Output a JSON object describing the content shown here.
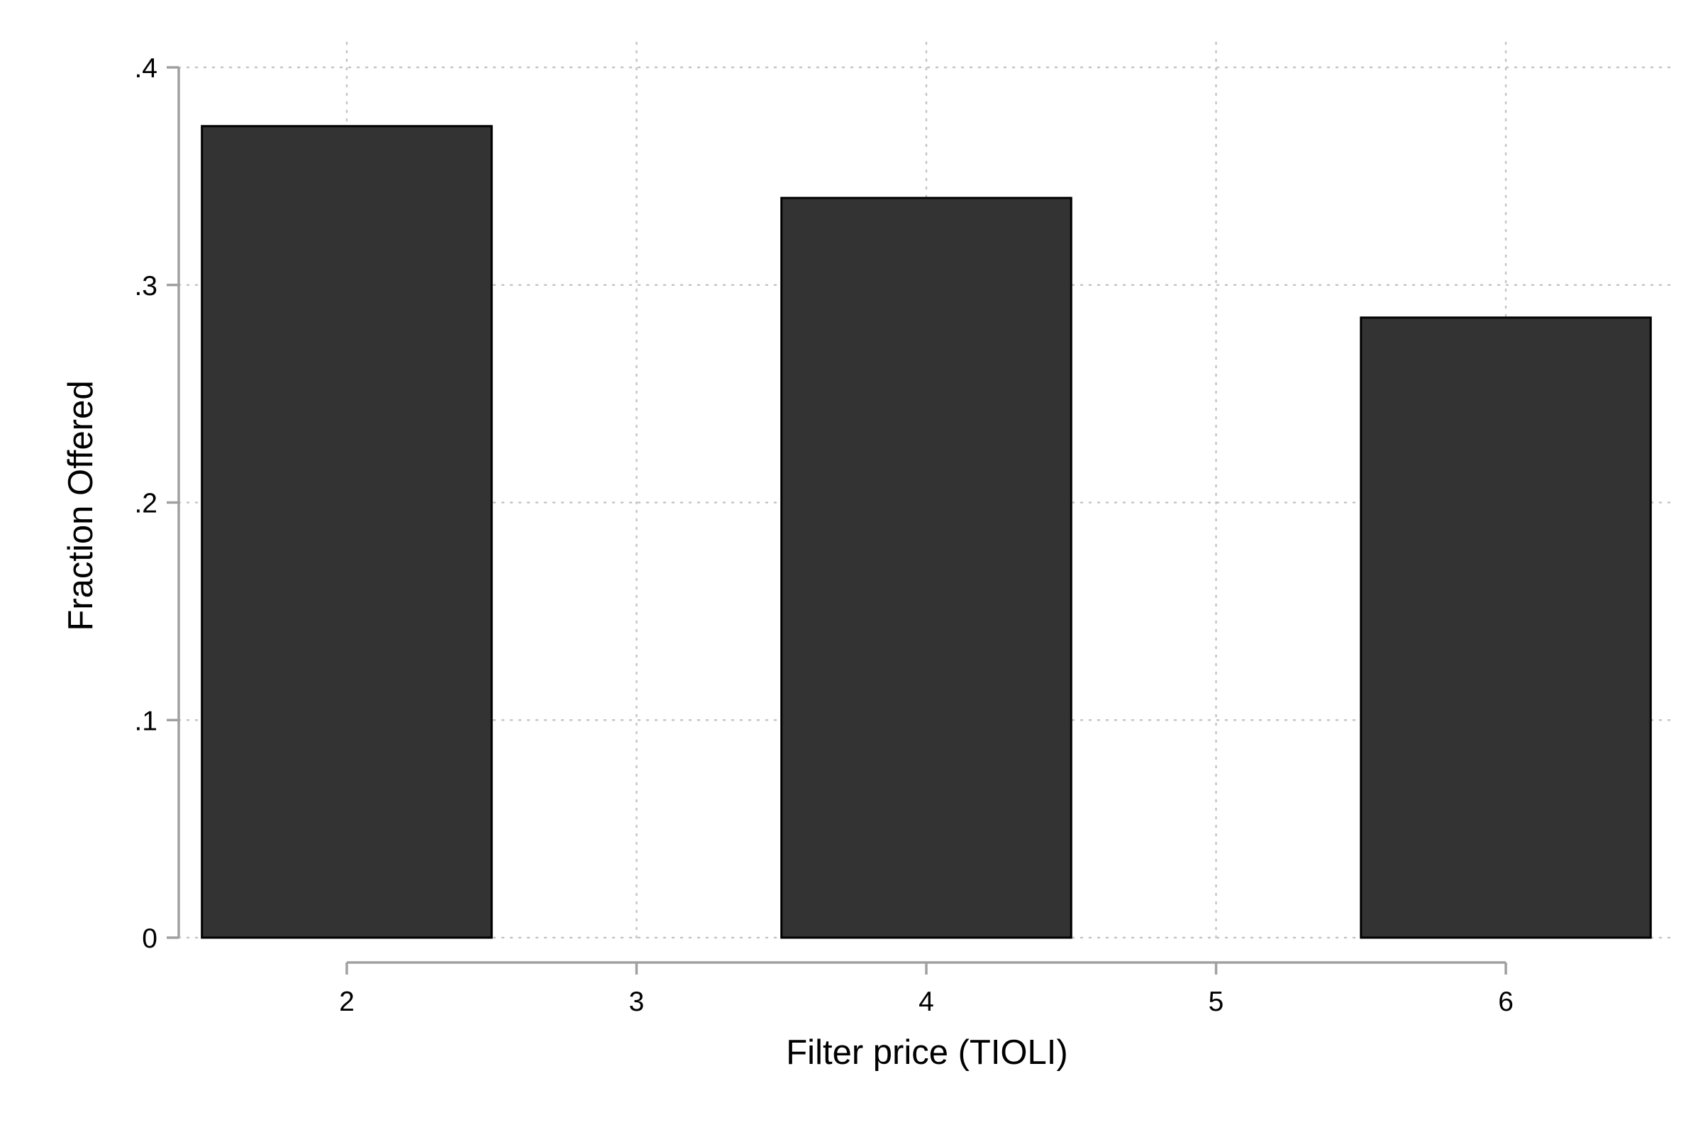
{
  "chart_data": {
    "type": "bar",
    "x": [
      2,
      4,
      6
    ],
    "values": [
      0.373,
      0.34,
      0.285
    ],
    "bar_width": 1,
    "xlabel": "Filter price (TIOLI)",
    "ylabel": "Fraction Offered",
    "xlim": [
      1.42,
      6.58
    ],
    "ylim": [
      0,
      0.4
    ],
    "x_ticks": [
      2,
      3,
      4,
      5,
      6
    ],
    "x_tick_labels": [
      "2",
      "3",
      "4",
      "5",
      "6"
    ],
    "y_ticks": [
      0,
      0.1,
      0.2,
      0.3,
      0.4
    ],
    "y_tick_labels": [
      "0",
      ".1",
      ".2",
      ".3",
      ".4"
    ],
    "grid": true,
    "bar_color": "#333333",
    "bar_edge_color": "#000000",
    "grid_color": "#c4c4c4",
    "axis_color": "#a0a0a0"
  }
}
